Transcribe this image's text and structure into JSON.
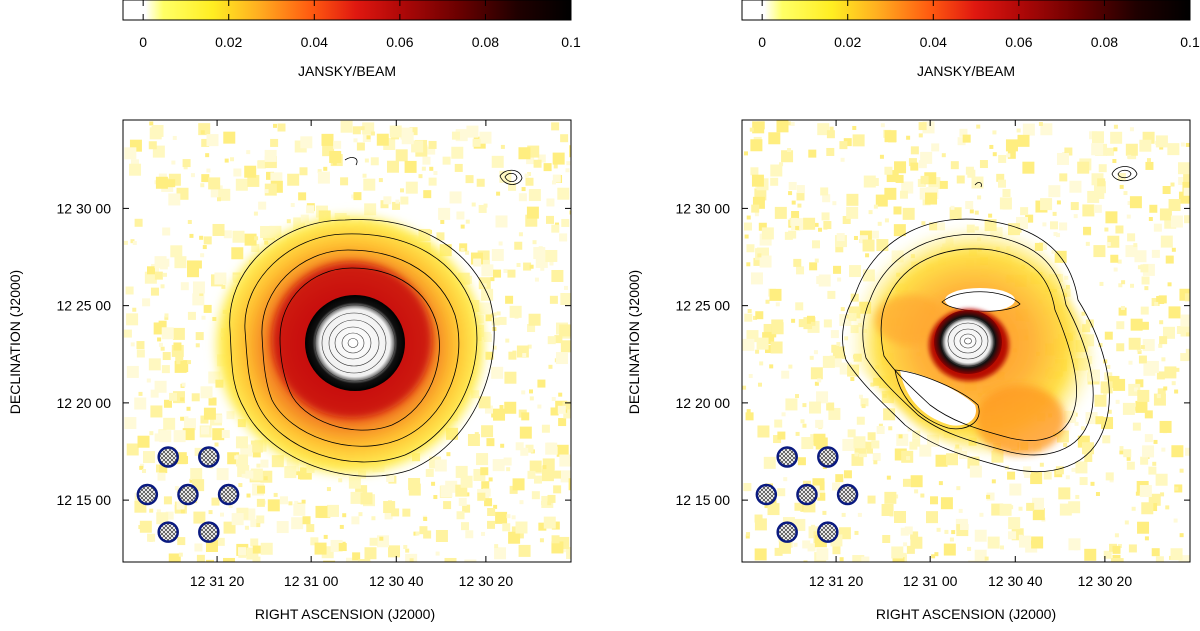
{
  "chart_data": [
    {
      "type": "heatmap",
      "panel": "left",
      "description_text": "",
      "colorbar": {
        "min": 0,
        "max": 0.1,
        "ticks": [
          0,
          0.02,
          0.04,
          0.06,
          0.08,
          0.1
        ],
        "tick_labels": [
          "0",
          "0.02",
          "0.04",
          "0.06",
          "0.08",
          "0.1"
        ],
        "label": "JANSKY/BEAM",
        "colormap": [
          "#ffffff",
          "#ffff33",
          "#ffa020",
          "#e62010",
          "#a00000",
          "#300000",
          "#000000"
        ]
      },
      "xlabel": "RIGHT ASCENSION  (J2000)",
      "ylabel": "DECLINATION  (J2000)",
      "x_ticks": [
        "12 31 20",
        "12 31 00",
        "12 30 40",
        "12 30 20"
      ],
      "y_ticks": [
        "12 30 00",
        "12 25 00",
        "12 20 00",
        "12 15 00"
      ],
      "source_peak": 0.1,
      "halo_level": 0.02,
      "beam_markers": 7
    },
    {
      "type": "heatmap",
      "panel": "right",
      "colorbar": {
        "min": 0,
        "max": 0.1,
        "ticks": [
          0,
          0.02,
          0.04,
          0.06,
          0.08,
          0.1
        ],
        "tick_labels": [
          "0",
          "0.02",
          "0.04",
          "0.06",
          "0.08",
          "0.1"
        ],
        "label": "JANSKY/BEAM",
        "colormap": [
          "#ffffff",
          "#ffff33",
          "#ffa020",
          "#e62010",
          "#a00000",
          "#300000",
          "#000000"
        ]
      },
      "xlabel": "RIGHT ASCENSION  (J2000)",
      "ylabel": "DECLINATION  (J2000)",
      "x_ticks": [
        "12 31 20",
        "12 31 00",
        "12 30 40",
        "12 30 20"
      ],
      "y_ticks": [
        "12 30 00",
        "12 25 00",
        "12 20 00",
        "12 15 00"
      ],
      "source_peak": 0.1,
      "halo_level": 0.015,
      "beam_markers": 7
    }
  ]
}
